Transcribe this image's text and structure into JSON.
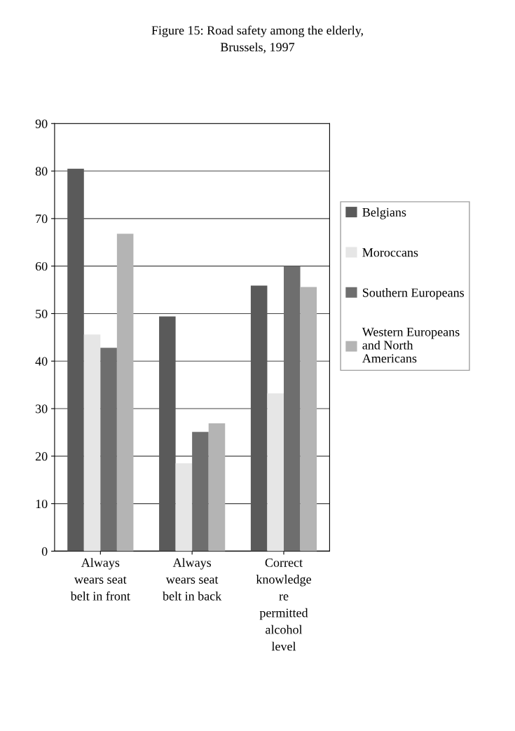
{
  "chart_data": {
    "type": "bar",
    "title": "Figure 15: Road safety among the elderly,\nBrussels, 1997",
    "categories": [
      "Always\nwears seat\nbelt in front",
      "Always\nwears seat\nbelt in back",
      "Correct\nknowledge\nre\npermitted\nalcohol\nlevel"
    ],
    "series": [
      {
        "name": "Belgians",
        "color": "#5a5a5a",
        "values": [
          80.5,
          49.4,
          55.9
        ]
      },
      {
        "name": "Moroccans",
        "color": "#e6e6e6",
        "values": [
          45.6,
          18.5,
          33.2
        ]
      },
      {
        "name": "Southern Europeans",
        "color": "#6e6e6e",
        "values": [
          42.8,
          25.1,
          60
        ]
      },
      {
        "name": "Western Europeans and North Americans",
        "color": "#b4b4b4",
        "values": [
          66.8,
          26.9,
          55.6
        ]
      }
    ],
    "ylim": [
      0,
      90
    ],
    "yticks": [
      0,
      10,
      20,
      30,
      40,
      50,
      60,
      70,
      80,
      90
    ],
    "grid": "y",
    "legend": "right"
  }
}
